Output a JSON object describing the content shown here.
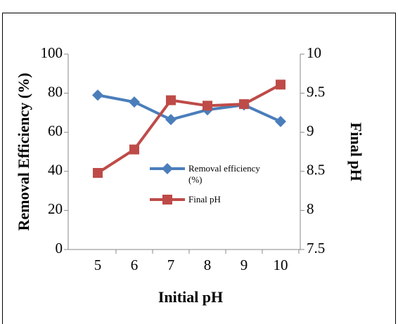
{
  "chart_data": {
    "type": "line",
    "x_label": "Initial pH",
    "y_label": "Removal Efficiency  (%)",
    "y2_label": "Final pH",
    "categories": [
      "5",
      "6",
      "7",
      "8",
      "9",
      "10"
    ],
    "series": [
      {
        "name": "Removal efficiency (%)",
        "color": "#4a7ebb",
        "marker": "diamond",
        "values": [
          79,
          75.5,
          66.5,
          71.5,
          74,
          65.5
        ]
      },
      {
        "name": "Final pH",
        "color": "#be4b48",
        "marker": "square",
        "axis": "y2",
        "values": [
          8.48,
          8.78,
          9.41,
          9.34,
          9.36,
          9.61
        ]
      }
    ],
    "ylim": [
      0,
      100
    ],
    "yticks": [
      0,
      20,
      40,
      60,
      80,
      100
    ],
    "y2lim": [
      7.5,
      10
    ],
    "y2ticks": [
      7.5,
      8,
      8.5,
      9,
      9.5,
      10
    ],
    "grid": false,
    "legend": "center"
  }
}
